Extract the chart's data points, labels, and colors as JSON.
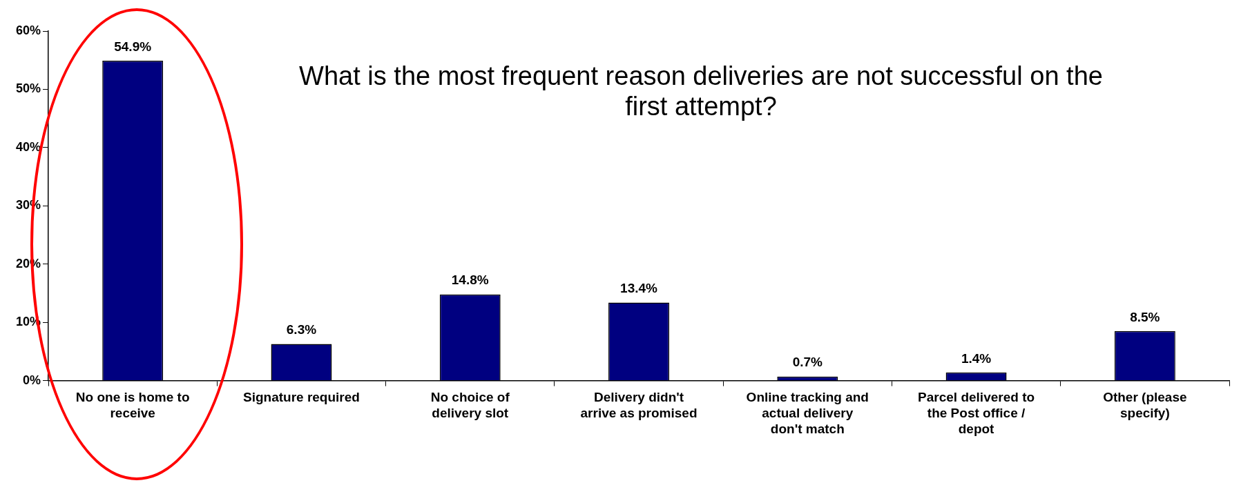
{
  "chart_data": {
    "type": "bar",
    "title": "What is the most frequent reason deliveries are not successful on the first attempt?",
    "categories": [
      "No one is home to receive",
      "Signature required",
      "No choice of delivery slot",
      "Delivery didn't arrive as promised",
      "Online tracking and actual delivery don't match",
      "Parcel delivered to the Post office / depot",
      "Other (please specify)"
    ],
    "values": [
      54.9,
      6.3,
      14.8,
      13.4,
      0.7,
      1.4,
      8.5
    ],
    "value_labels": [
      "54.9%",
      "6.3%",
      "14.8%",
      "13.4%",
      "0.7%",
      "1.4%",
      "8.5%"
    ],
    "color": "#000080",
    "ylim": [
      0,
      60
    ],
    "yticks": [
      {
        "value": 0,
        "label": "0%"
      },
      {
        "value": 10,
        "label": "10%"
      },
      {
        "value": 20,
        "label": "20%"
      },
      {
        "value": 30,
        "label": "30%"
      },
      {
        "value": 40,
        "label": "40%"
      },
      {
        "value": 50,
        "label": "50%"
      },
      {
        "value": 60,
        "label": "60%"
      }
    ],
    "grid": false,
    "legend": false
  }
}
